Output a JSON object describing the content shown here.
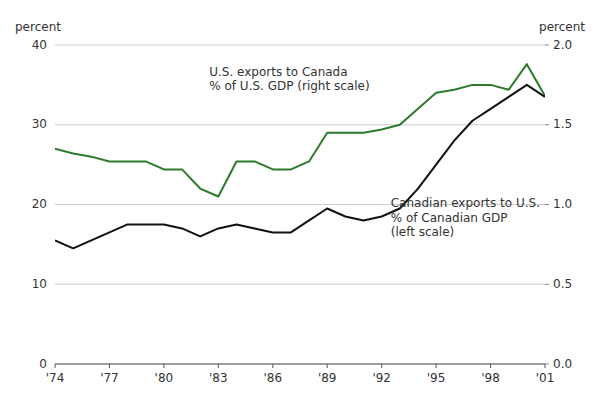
{
  "chart_data": {
    "type": "line",
    "x": [
      1974,
      1975,
      1976,
      1977,
      1978,
      1979,
      1980,
      1981,
      1982,
      1983,
      1984,
      1985,
      1986,
      1987,
      1988,
      1989,
      1990,
      1991,
      1992,
      1993,
      1994,
      1995,
      1996,
      1997,
      1998,
      1999,
      2000,
      2001
    ],
    "series": [
      {
        "color": "#2d7a2d",
        "axis": "y2",
        "values": [
          1.35,
          1.32,
          1.3,
          1.27,
          1.27,
          1.27,
          1.22,
          1.22,
          1.1,
          1.05,
          1.27,
          1.27,
          1.22,
          1.22,
          1.27,
          1.45,
          1.45,
          1.45,
          1.47,
          1.5,
          1.6,
          1.7,
          1.72,
          1.75,
          1.75,
          1.72,
          1.88,
          1.68
        ]
      },
      {
        "color": "#111111",
        "values": [
          15.5,
          14.5,
          15.5,
          16.5,
          17.5,
          17.5,
          17.5,
          17.0,
          16.0,
          17.0,
          17.5,
          17.0,
          16.5,
          16.5,
          18.0,
          19.5,
          18.5,
          18.0,
          18.5,
          19.5,
          22.0,
          25.0,
          28.0,
          30.5,
          32.0,
          33.5,
          35.0,
          33.5
        ]
      }
    ],
    "xlim": [
      1974,
      2001
    ],
    "xticks": [
      {
        "value": 1974,
        "label": "'74"
      },
      {
        "value": 1977,
        "label": "'77"
      },
      {
        "value": 1980,
        "label": "'80"
      },
      {
        "value": 1983,
        "label": "'83"
      },
      {
        "value": 1986,
        "label": "'86"
      },
      {
        "value": 1989,
        "label": "'89"
      },
      {
        "value": 1992,
        "label": "'92"
      },
      {
        "value": 1995,
        "label": "'95"
      },
      {
        "value": 1998,
        "label": "'98"
      },
      {
        "value": 2001,
        "label": "'01"
      }
    ],
    "ylim": [
      0,
      40
    ],
    "yticks": [
      0,
      10,
      20,
      30,
      40
    ],
    "y2lim": [
      0,
      2
    ],
    "y2ticks": [
      {
        "value": 0,
        "label": "0.0"
      },
      0.5,
      {
        "value": 1,
        "label": "1.0"
      },
      1.5,
      {
        "value": 2,
        "label": "2.0"
      }
    ],
    "ylabel": "percent",
    "y2label": "percent",
    "grid": true,
    "annotations": [
      {
        "text": "U.S. exports to Canada\n% of U.S. GDP (right scale)",
        "x": 1982.5,
        "y": 37.5
      },
      {
        "text": "Canadian exports to U.S.\n% of Canadian GDP\n(left scale)",
        "x": 1992.5,
        "y": 21.0
      }
    ]
  }
}
